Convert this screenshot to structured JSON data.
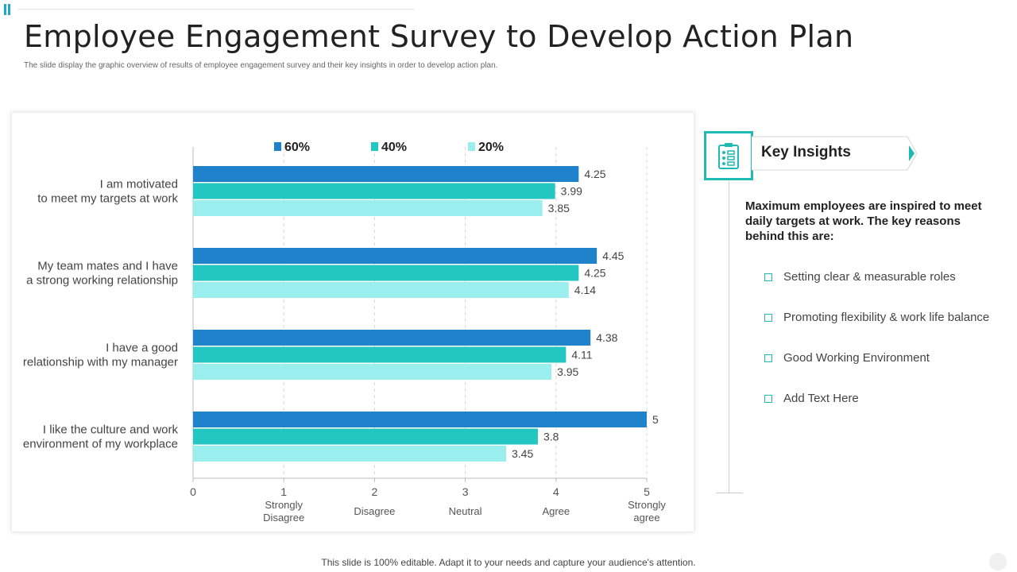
{
  "title": "Employee Engagement Survey to Develop Action Plan",
  "subtitle": "The slide display the graphic overview of results of employee engagement survey and their key insights in order to develop action plan.",
  "footer": "This slide is 100% editable. Adapt it to your needs and capture your audience's attention.",
  "colors": {
    "teal": "#1fbab2",
    "series": [
      "#1f83cc",
      "#22c7c2",
      "#9aefee"
    ]
  },
  "chart_data": {
    "type": "bar",
    "orientation": "horizontal",
    "categories": [
      [
        "I am motivated",
        "to meet my targets at work"
      ],
      [
        "My team mates and I have",
        "a strong working relationship"
      ],
      [
        "I have a good",
        "relationship with my manager"
      ],
      [
        "I like the culture and work",
        "environment of my workplace"
      ]
    ],
    "series": [
      {
        "name": "60%",
        "values": [
          4.25,
          4.45,
          4.38,
          5
        ]
      },
      {
        "name": "40%",
        "values": [
          3.99,
          4.25,
          4.11,
          3.8
        ]
      },
      {
        "name": "20%",
        "values": [
          3.85,
          4.14,
          3.95,
          3.45
        ]
      }
    ],
    "value_labels": [
      [
        "4.25",
        "4.45",
        "4.38",
        "5"
      ],
      [
        "3.99",
        "4.25",
        "4.11",
        "3.8"
      ],
      [
        "3.85",
        "4.14",
        "3.95",
        "3.45"
      ]
    ],
    "xlim": [
      0,
      5
    ],
    "xticks": [
      "0",
      "1",
      "2",
      "3",
      "4",
      "5"
    ],
    "xtick_captions": [
      [],
      [
        "Strongly",
        "Disagree"
      ],
      [
        "Disagree"
      ],
      [
        "Neutral"
      ],
      [
        "Agree"
      ],
      [
        "Strongly",
        "agree"
      ]
    ],
    "legend_position": "top",
    "grid": true
  },
  "insights": {
    "heading": "Key Insights",
    "intro": "Maximum employees are inspired to meet daily targets at work. The key reasons behind this are:",
    "items": [
      "Setting clear & measurable roles",
      "Promoting flexibility & work life balance",
      "Good Working Environment",
      "Add Text Here"
    ]
  }
}
